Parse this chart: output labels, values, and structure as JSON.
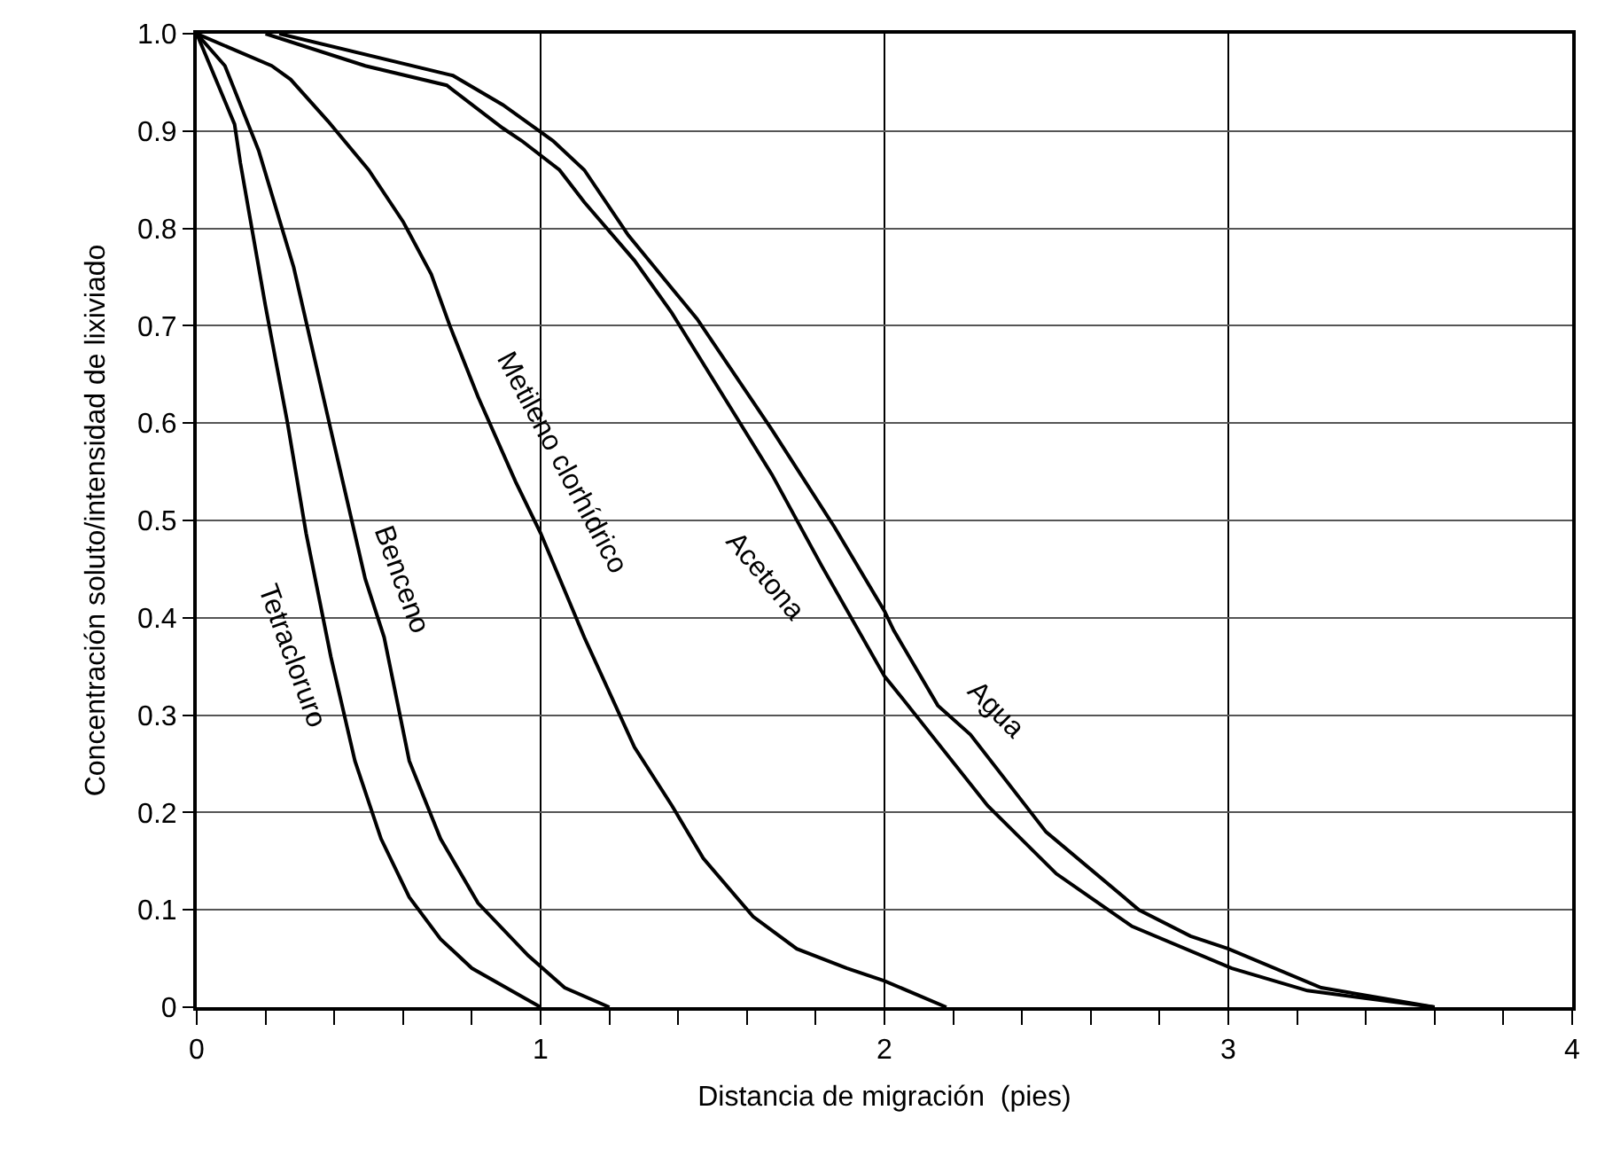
{
  "chart_data": {
    "type": "line",
    "xlabel": "Distancia de migración  (pies)",
    "ylabel": "Concentración soluto/intensidad de lixiviado",
    "xlim": [
      0,
      4
    ],
    "ylim": [
      0,
      1
    ],
    "xticks": [
      0,
      {
        "value": 0.2,
        "label": null
      },
      {
        "value": 0.4,
        "label": null
      },
      {
        "value": 0.6,
        "label": null
      },
      {
        "value": 0.8,
        "label": null
      },
      1,
      {
        "value": 1.2,
        "label": null
      },
      {
        "value": 1.4,
        "label": null
      },
      {
        "value": 1.6,
        "label": null
      },
      {
        "value": 1.8,
        "label": null
      },
      2,
      {
        "value": 2.2,
        "label": null
      },
      {
        "value": 2.4,
        "label": null
      },
      {
        "value": 2.6,
        "label": null
      },
      {
        "value": 2.8,
        "label": null
      },
      3,
      {
        "value": 3.2,
        "label": null
      },
      {
        "value": 3.4,
        "label": null
      },
      {
        "value": 3.6,
        "label": null
      },
      {
        "value": 3.8,
        "label": null
      },
      4
    ],
    "yticks": [
      0,
      0.1,
      0.2,
      0.3,
      0.4,
      0.5,
      0.6,
      0.7,
      0.8,
      0.9,
      {
        "value": 1,
        "label": "1.0"
      }
    ],
    "grid": true,
    "legend": false,
    "marker": "none",
    "line_style": "solid",
    "series": [
      {
        "name": "Tetracloruro",
        "color": "#000000",
        "x": [
          0,
          0.11,
          0.127,
          0.2,
          0.264,
          0.318,
          0.39,
          0.46,
          0.536,
          0.618,
          0.709,
          0.8,
          1
        ],
        "values": [
          1,
          0.907,
          0.867,
          0.72,
          0.6,
          0.487,
          0.36,
          0.253,
          0.173,
          0.113,
          0.07,
          0.04,
          0
        ]
      },
      {
        "name": "Benceno",
        "color": "#000000",
        "x": [
          0,
          0.082,
          0.18,
          0.282,
          0.39,
          0.49,
          0.545,
          0.618,
          0.709,
          0.818,
          0.964,
          1.07,
          1.2
        ],
        "values": [
          1,
          0.967,
          0.88,
          0.76,
          0.593,
          0.44,
          0.38,
          0.253,
          0.173,
          0.107,
          0.053,
          0.02,
          0
        ]
      },
      {
        "name": "Metileno clorhídrico",
        "color": "#000000",
        "x": [
          0,
          0.218,
          0.273,
          0.382,
          0.5,
          0.6,
          0.682,
          0.736,
          0.818,
          0.927,
          1,
          1.127,
          1.273,
          1.382,
          1.473,
          1.618,
          1.745,
          1.891,
          2,
          2.18
        ],
        "values": [
          1,
          0.967,
          0.953,
          0.91,
          0.86,
          0.807,
          0.753,
          0.7,
          0.627,
          0.54,
          0.487,
          0.38,
          0.267,
          0.207,
          0.153,
          0.093,
          0.06,
          0.04,
          0.027,
          0
        ]
      },
      {
        "name": "Acetona",
        "color": "#000000",
        "x": [
          0.2,
          0.49,
          0.727,
          0.89,
          0.945,
          1.055,
          1.127,
          1.273,
          1.382,
          1.545,
          1.673,
          1.818,
          2,
          2.046,
          2.3,
          2.5,
          2.72,
          3.01,
          3.23,
          3.6
        ],
        "values": [
          1,
          0.967,
          0.947,
          0.903,
          0.89,
          0.86,
          0.827,
          0.767,
          0.713,
          0.62,
          0.547,
          0.453,
          0.34,
          0.32,
          0.207,
          0.137,
          0.083,
          0.04,
          0.017,
          0
        ]
      },
      {
        "name": "Agua",
        "color": "#000000",
        "x": [
          0.24,
          0.745,
          0.89,
          1.036,
          1.127,
          1.255,
          1.455,
          1.673,
          1.855,
          2,
          2.027,
          2.155,
          2.25,
          2.47,
          2.74,
          2.89,
          3,
          3.27,
          3.6
        ],
        "values": [
          1,
          0.957,
          0.927,
          0.89,
          0.86,
          0.793,
          0.707,
          0.593,
          0.493,
          0.407,
          0.387,
          0.31,
          0.28,
          0.18,
          0.1,
          0.073,
          0.06,
          0.02,
          0
        ]
      }
    ]
  }
}
